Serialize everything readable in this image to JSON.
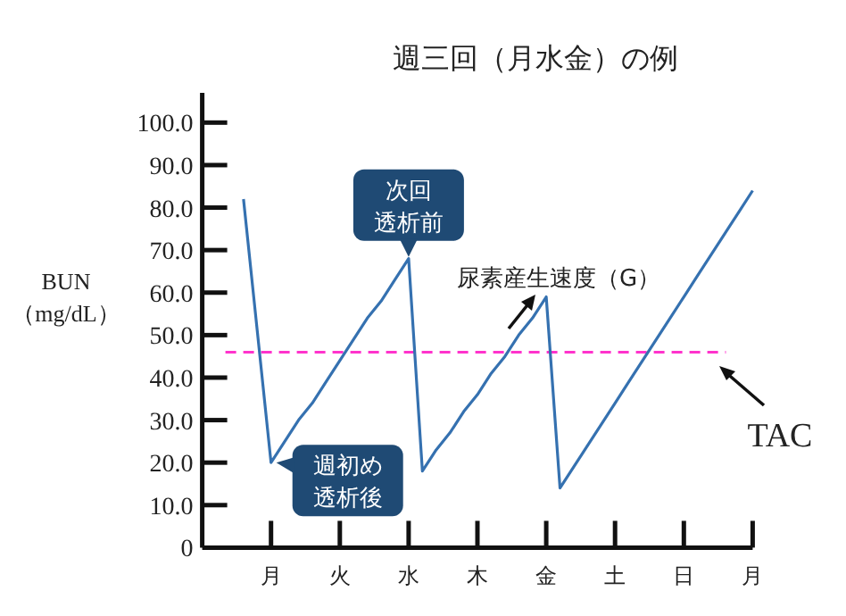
{
  "chart_data": {
    "type": "line",
    "title": "週三回（月水金）の例",
    "ylabel": "BUN\n（mg/dL）",
    "categories": [
      null,
      null,
      null,
      null,
      null,
      "月",
      null,
      null,
      null,
      null,
      "火",
      null,
      null,
      null,
      null,
      "水",
      null,
      null,
      null,
      null,
      "木",
      null,
      null,
      null,
      null,
      "金",
      null,
      null,
      null,
      null,
      "土",
      null,
      null,
      null,
      null,
      "日",
      null,
      null,
      null,
      null,
      "月"
    ],
    "ylim": [
      0,
      107
    ],
    "yticks": [
      0,
      {
        "value": 10,
        "label": "10.0"
      },
      {
        "value": 20,
        "label": "20.0"
      },
      {
        "value": 30,
        "label": "30.0"
      },
      {
        "value": 40,
        "label": "40.0"
      },
      {
        "value": 50,
        "label": "50.0"
      },
      {
        "value": 60,
        "label": "60.0"
      },
      {
        "value": 70,
        "label": "70.0"
      },
      {
        "value": 80,
        "label": "80.0"
      },
      {
        "value": 90,
        "label": "90.0"
      },
      {
        "value": 100,
        "label": "100.0"
      }
    ],
    "series": [
      {
        "color": "#3571b0",
        "values": [
          null,
          null,
          null,
          82,
          51,
          20,
          25,
          30,
          34,
          39,
          44,
          49,
          54,
          58,
          63,
          68,
          18,
          23,
          27,
          32,
          36,
          41,
          45,
          50,
          54,
          59,
          14,
          19,
          24,
          29,
          34,
          39,
          44,
          49,
          54,
          59,
          64,
          69,
          74,
          79,
          84
        ]
      }
    ],
    "line_style": "solid",
    "ref_lines": [
      {
        "axis": "y",
        "value": 46,
        "label": "TAC",
        "color": "#ff33cc",
        "line_style": "dashed"
      }
    ],
    "annotations": [
      {
        "text": "次回透析前",
        "x": "水",
        "y": 68
      },
      {
        "text": "週初め透析後",
        "x": "月",
        "y": 20
      },
      "尿素産生速度（G）"
    ]
  }
}
